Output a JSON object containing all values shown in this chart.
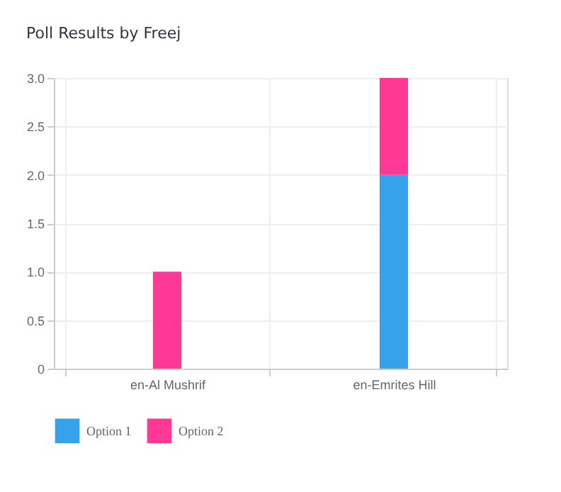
{
  "chart_data": {
    "type": "bar",
    "title": "Poll Results by Freej",
    "stacked": true,
    "categories": [
      "en-Al Mushrif",
      "en-Emrites Hill"
    ],
    "series": [
      {
        "name": "Option 1",
        "color": "#36a2eb",
        "values": [
          0,
          2
        ]
      },
      {
        "name": "Option 2",
        "color": "#ff3895",
        "values": [
          1,
          1
        ]
      }
    ],
    "ylim": [
      0,
      3
    ],
    "yticks": [
      0,
      0.5,
      {
        "value": 1,
        "label": "1.0"
      },
      1.5,
      {
        "value": 2,
        "label": "2.0"
      },
      2.5,
      {
        "value": 3,
        "label": "3.0"
      }
    ],
    "grid": true,
    "legend": "bottom"
  }
}
